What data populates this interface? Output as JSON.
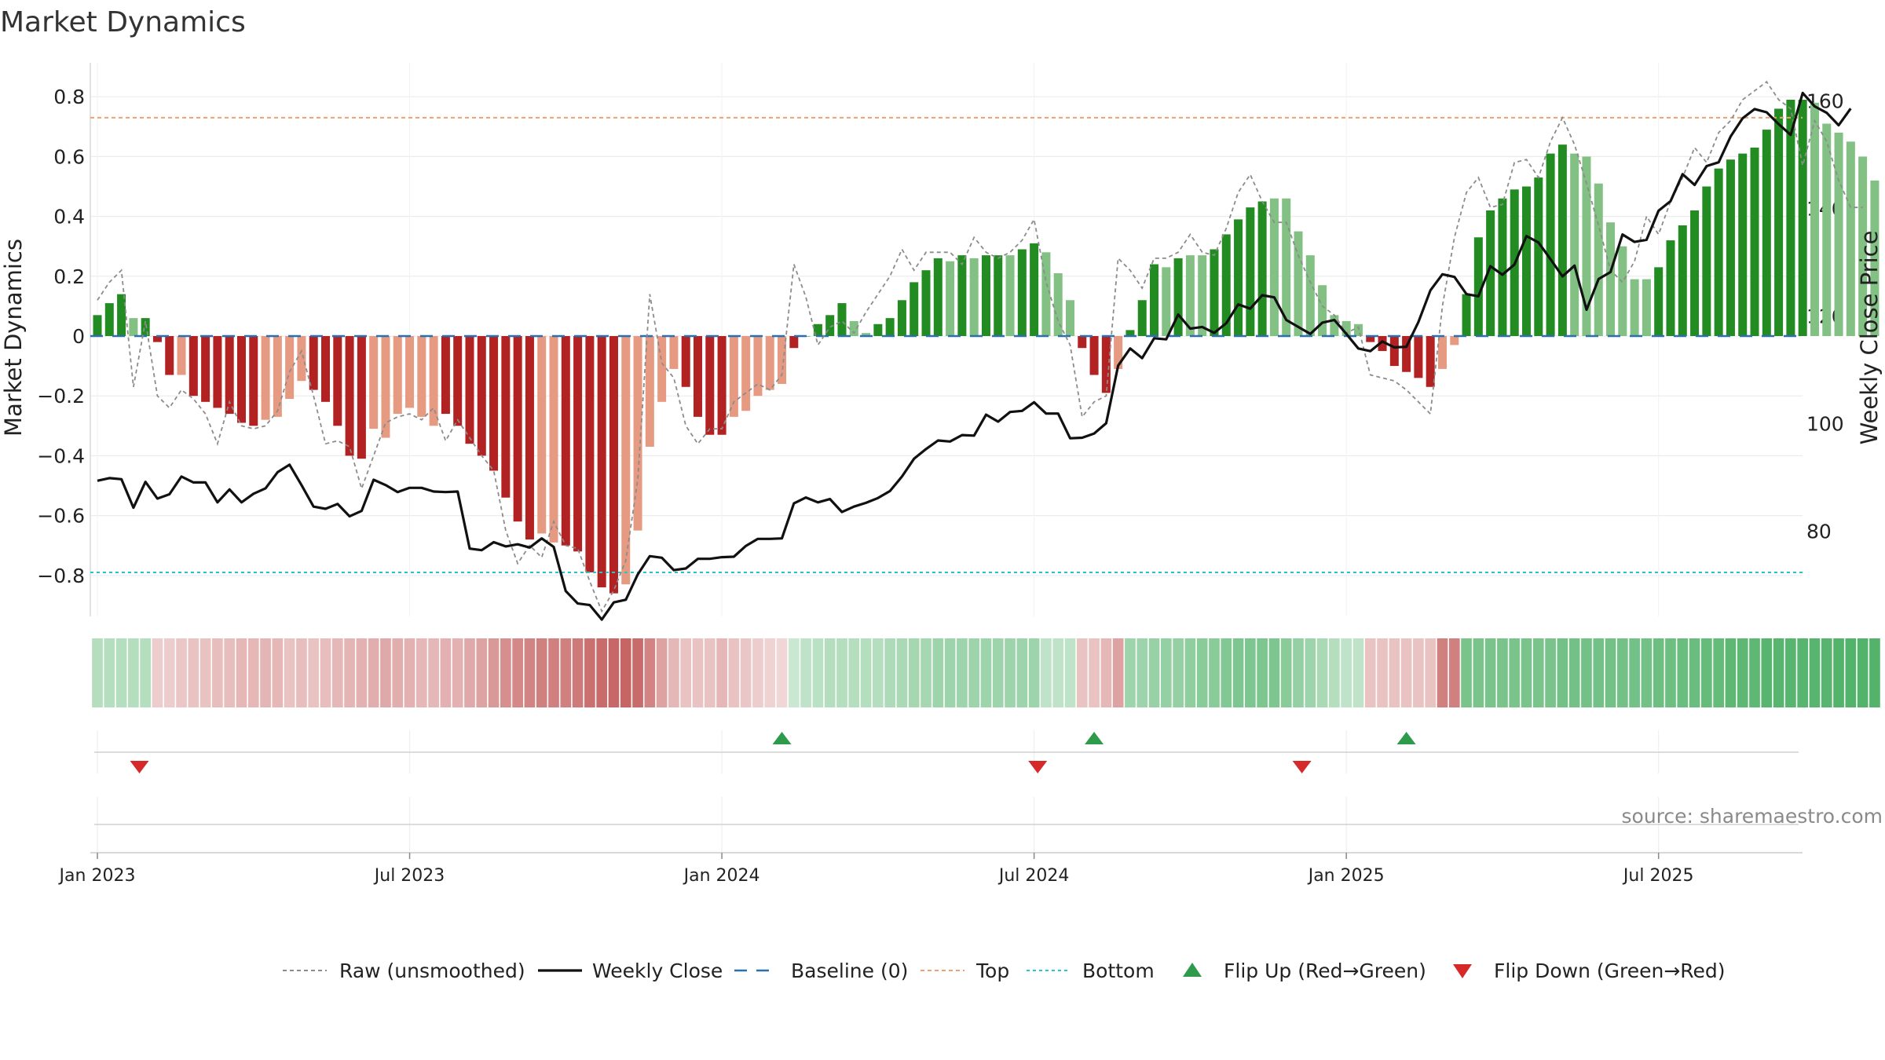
{
  "chart_data": {
    "type": "bar",
    "title": "Market Dynamics",
    "ylabel_left": "Market Dynamics",
    "ylabel_right": "Weekly Close Price",
    "source": "source: sharemaestro.com",
    "ylim_left": [
      -0.92,
      0.93
    ],
    "yticks_left": [
      -0.8,
      -0.6,
      -0.4,
      -0.2,
      0,
      0.2,
      0.4,
      0.6,
      0.8
    ],
    "yticklabels_left": [
      "−0.8",
      "−0.6",
      "−0.4",
      "−0.2",
      "0",
      "0.2",
      "0.4",
      "0.6",
      "0.8"
    ],
    "ylim_right": [
      64.2,
      167.1
    ],
    "yticks_right": [
      80,
      100,
      120,
      140,
      160
    ],
    "yticklabels_right": [
      "80",
      "100",
      "120",
      "140",
      "160"
    ],
    "xticks": [
      "Jan 2023",
      "Jul 2023",
      "Jan 2024",
      "Jul 2024",
      "Jan 2025",
      "Jul 2025"
    ],
    "xtick_weeks": [
      0,
      26,
      52,
      78,
      104,
      130
    ],
    "week_start": "Jan 2023",
    "top_threshold": 0.73,
    "bottom_threshold": -0.79,
    "baseline": 0,
    "smoothed": [
      0.07,
      0.11,
      0.14,
      0.06,
      0.06,
      -0.02,
      -0.13,
      -0.13,
      -0.2,
      -0.22,
      -0.24,
      -0.26,
      -0.29,
      -0.3,
      -0.28,
      -0.27,
      -0.21,
      -0.15,
      -0.18,
      -0.22,
      -0.3,
      -0.4,
      -0.41,
      -0.31,
      -0.34,
      -0.26,
      -0.24,
      -0.27,
      -0.3,
      -0.26,
      -0.3,
      -0.36,
      -0.4,
      -0.45,
      -0.54,
      -0.62,
      -0.68,
      -0.66,
      -0.69,
      -0.7,
      -0.72,
      -0.79,
      -0.84,
      -0.86,
      -0.83,
      -0.65,
      -0.37,
      -0.22,
      -0.11,
      -0.17,
      -0.27,
      -0.33,
      -0.33,
      -0.27,
      -0.25,
      -0.2,
      -0.18,
      -0.16,
      -0.04,
      0.0,
      0.04,
      0.07,
      0.11,
      0.05,
      0.01,
      0.04,
      0.06,
      0.12,
      0.18,
      0.22,
      0.26,
      0.25,
      0.27,
      0.26,
      0.27,
      0.27,
      0.27,
      0.29,
      0.31,
      0.28,
      0.21,
      0.12,
      -0.04,
      -0.13,
      -0.19,
      -0.11,
      0.02,
      0.12,
      0.24,
      0.23,
      0.26,
      0.27,
      0.27,
      0.29,
      0.34,
      0.39,
      0.43,
      0.45,
      0.46,
      0.46,
      0.35,
      0.27,
      0.17,
      0.07,
      0.05,
      0.04,
      -0.02,
      -0.05,
      -0.1,
      -0.12,
      -0.14,
      -0.17,
      -0.11,
      -0.03,
      0.14,
      0.33,
      0.42,
      0.46,
      0.49,
      0.5,
      0.53,
      0.61,
      0.64,
      0.61,
      0.6,
      0.51,
      0.38,
      0.3,
      0.19,
      0.19,
      0.23,
      0.32,
      0.37,
      0.42,
      0.5,
      0.56,
      0.59,
      0.61,
      0.63,
      0.69,
      0.76,
      0.79,
      0.79,
      0.78,
      0.71,
      0.68,
      0.65,
      0.6,
      0.52
    ],
    "bar_shade": [
      "d",
      "d",
      "d",
      "l",
      "d",
      "d",
      "d",
      "l",
      "d",
      "d",
      "d",
      "d",
      "d",
      "d",
      "l",
      "l",
      "l",
      "l",
      "d",
      "d",
      "d",
      "d",
      "d",
      "l",
      "l",
      "l",
      "l",
      "l",
      "l",
      "d",
      "d",
      "d",
      "d",
      "d",
      "d",
      "d",
      "d",
      "l",
      "l",
      "d",
      "d",
      "d",
      "d",
      "d",
      "l",
      "l",
      "l",
      "l",
      "l",
      "d",
      "d",
      "d",
      "d",
      "l",
      "l",
      "l",
      "l",
      "l",
      "d",
      "l",
      "d",
      "d",
      "d",
      "l",
      "l",
      "d",
      "d",
      "d",
      "d",
      "d",
      "d",
      "l",
      "d",
      "l",
      "d",
      "d",
      "l",
      "d",
      "d",
      "l",
      "l",
      "l",
      "d",
      "d",
      "d",
      "l",
      "d",
      "d",
      "d",
      "l",
      "d",
      "l",
      "l",
      "d",
      "d",
      "d",
      "d",
      "d",
      "l",
      "l",
      "l",
      "l",
      "l",
      "l",
      "l",
      "l",
      "d",
      "d",
      "d",
      "d",
      "d",
      "d",
      "l",
      "l",
      "d",
      "d",
      "d",
      "d",
      "d",
      "d",
      "d",
      "d",
      "d",
      "l",
      "l",
      "l",
      "l",
      "l",
      "l",
      "l",
      "d",
      "d",
      "d",
      "d",
      "d",
      "d",
      "d",
      "d",
      "d",
      "d",
      "d",
      "d",
      "d",
      "l",
      "l",
      "l",
      "l",
      "l",
      "l",
      "l",
      "l"
    ],
    "raw": [
      0.12,
      0.18,
      0.22,
      -0.17,
      0.05,
      -0.2,
      -0.24,
      -0.18,
      -0.21,
      -0.26,
      -0.36,
      -0.22,
      -0.3,
      -0.31,
      -0.3,
      -0.25,
      -0.12,
      -0.05,
      -0.2,
      -0.36,
      -0.35,
      -0.37,
      -0.51,
      -0.4,
      -0.29,
      -0.27,
      -0.26,
      -0.28,
      -0.24,
      -0.35,
      -0.28,
      -0.34,
      -0.4,
      -0.45,
      -0.65,
      -0.76,
      -0.7,
      -0.74,
      -0.62,
      -0.7,
      -0.71,
      -0.82,
      -0.92,
      -0.85,
      -0.75,
      -0.48,
      0.14,
      -0.09,
      -0.14,
      -0.3,
      -0.36,
      -0.31,
      -0.31,
      -0.22,
      -0.19,
      -0.16,
      -0.18,
      -0.13,
      0.24,
      0.13,
      -0.03,
      0.03,
      0.05,
      0.01,
      0.08,
      0.14,
      0.2,
      0.29,
      0.22,
      0.28,
      0.28,
      0.28,
      0.24,
      0.33,
      0.28,
      0.26,
      0.28,
      0.32,
      0.39,
      0.18,
      0.05,
      -0.03,
      -0.27,
      -0.22,
      -0.2,
      0.26,
      0.22,
      0.16,
      0.26,
      0.26,
      0.28,
      0.34,
      0.28,
      0.27,
      0.36,
      0.48,
      0.54,
      0.45,
      0.38,
      0.38,
      0.27,
      0.18,
      0.1,
      0.07,
      0.01,
      0.03,
      -0.13,
      -0.14,
      -0.15,
      -0.18,
      -0.22,
      -0.26,
      0.1,
      0.33,
      0.48,
      0.53,
      0.43,
      0.44,
      0.58,
      0.59,
      0.53,
      0.65,
      0.73,
      0.64,
      0.51,
      0.37,
      0.22,
      0.18,
      0.25,
      0.4,
      0.34,
      0.45,
      0.53,
      0.63,
      0.58,
      0.68,
      0.72,
      0.79,
      0.82,
      0.85,
      0.79,
      0.76,
      0.57,
      0.72,
      0.65,
      0.52,
      0.43,
      0.43
    ],
    "weekly_close": [
      89.4,
      89.9,
      89.7,
      84.4,
      89.2,
      86.1,
      86.9,
      90.2,
      89.1,
      89.1,
      85.4,
      87.8,
      85.4,
      87.0,
      88.0,
      91.0,
      92.4,
      88.6,
      84.6,
      84.2,
      85.1,
      82.8,
      83.8,
      89.6,
      88.6,
      87.3,
      88.1,
      88.1,
      87.4,
      87.3,
      87.4,
      76.8,
      76.5,
      78.0,
      77.2,
      77.6,
      77.0,
      78.7,
      77.1,
      68.9,
      66.6,
      66.3,
      63.6,
      66.8,
      67.3,
      72.0,
      75.4,
      75.1,
      72.8,
      73.1,
      74.9,
      74.9,
      75.2,
      75.3,
      77.3,
      78.6,
      78.6,
      78.7,
      85.2,
      86.3,
      85.4,
      86.0,
      83.6,
      84.6,
      85.3,
      86.2,
      87.5,
      90.2,
      93.5,
      95.3,
      96.9,
      96.7,
      97.9,
      97.8,
      101.7,
      100.4,
      102.2,
      102.4,
      104.0,
      101.9,
      101.9,
      97.3,
      97.4,
      98.2,
      100.1,
      110.8,
      114.0,
      112.2,
      115.9,
      115.7,
      120.3,
      117.7,
      118.0,
      116.9,
      118.7,
      122.2,
      121.4,
      123.9,
      123.5,
      119.3,
      118.0,
      116.7,
      118.8,
      119.3,
      116.7,
      114.0,
      113.5,
      115.3,
      114.2,
      114.3,
      118.9,
      124.8,
      127.8,
      127.3,
      124.1,
      123.7,
      129.3,
      127.7,
      129.6,
      134.9,
      133.7,
      130.6,
      127.4,
      129.4,
      121.2,
      126.9,
      128.2,
      135.2,
      133.8,
      134.2,
      139.6,
      141.4,
      146.4,
      144.4,
      147.9,
      148.6,
      153.4,
      156.8,
      158.5,
      157.9,
      155.7,
      153.7,
      161.5,
      159.0,
      157.8,
      155.5,
      158.6
    ],
    "heat_strength": [
      0.35,
      0.35,
      0.35,
      0.35,
      0.35,
      0.25,
      0.25,
      0.28,
      0.3,
      0.3,
      0.32,
      0.32,
      0.35,
      0.35,
      0.36,
      0.35,
      0.3,
      0.32,
      0.3,
      0.32,
      0.35,
      0.36,
      0.38,
      0.4,
      0.42,
      0.4,
      0.38,
      0.35,
      0.35,
      0.38,
      0.38,
      0.42,
      0.45,
      0.5,
      0.55,
      0.58,
      0.6,
      0.62,
      0.62,
      0.62,
      0.65,
      0.7,
      0.72,
      0.74,
      0.75,
      0.72,
      0.6,
      0.45,
      0.35,
      0.3,
      0.3,
      0.3,
      0.35,
      0.3,
      0.28,
      0.25,
      0.22,
      0.2,
      0.25,
      0.3,
      0.32,
      0.35,
      0.35,
      0.35,
      0.35,
      0.35,
      0.38,
      0.4,
      0.42,
      0.42,
      0.45,
      0.45,
      0.45,
      0.45,
      0.45,
      0.45,
      0.45,
      0.45,
      0.45,
      0.3,
      0.3,
      0.3,
      0.3,
      0.3,
      0.35,
      0.45,
      0.45,
      0.45,
      0.48,
      0.5,
      0.5,
      0.52,
      0.55,
      0.55,
      0.58,
      0.6,
      0.6,
      0.6,
      0.6,
      0.55,
      0.5,
      0.45,
      0.4,
      0.35,
      0.3,
      0.3,
      0.3,
      0.3,
      0.3,
      0.3,
      0.3,
      0.3,
      0.62,
      0.62,
      0.62,
      0.62,
      0.62,
      0.62,
      0.62,
      0.62,
      0.62,
      0.62,
      0.65,
      0.65,
      0.65,
      0.65,
      0.65,
      0.65,
      0.65,
      0.65,
      0.68,
      0.68,
      0.7,
      0.7,
      0.72,
      0.72,
      0.75,
      0.75,
      0.75,
      0.78,
      0.78,
      0.78,
      0.78,
      0.78,
      0.78,
      0.8,
      0.8,
      0.8,
      0.8
    ],
    "heat_sign": [
      "g",
      "g",
      "g",
      "g",
      "g",
      "r",
      "r",
      "r",
      "r",
      "r",
      "r",
      "r",
      "r",
      "r",
      "r",
      "r",
      "r",
      "r",
      "r",
      "r",
      "r",
      "r",
      "r",
      "r",
      "r",
      "r",
      "r",
      "r",
      "r",
      "r",
      "r",
      "r",
      "r",
      "r",
      "r",
      "r",
      "r",
      "r",
      "r",
      "r",
      "r",
      "r",
      "r",
      "r",
      "r",
      "r",
      "r",
      "r",
      "r",
      "r",
      "r",
      "r",
      "r",
      "r",
      "r",
      "r",
      "r",
      "r",
      "g",
      "g",
      "g",
      "g",
      "g",
      "g",
      "g",
      "g",
      "g",
      "g",
      "g",
      "g",
      "g",
      "g",
      "g",
      "g",
      "g",
      "g",
      "g",
      "g",
      "g",
      "g",
      "g",
      "g",
      "r",
      "r",
      "r",
      "r",
      "g",
      "g",
      "g",
      "g",
      "g",
      "g",
      "g",
      "g",
      "g",
      "g",
      "g",
      "g",
      "g",
      "g",
      "g",
      "g",
      "g",
      "g",
      "g",
      "g",
      "r",
      "r",
      "r",
      "r",
      "r",
      "r",
      "r",
      "r",
      "g",
      "g",
      "g",
      "g",
      "g",
      "g",
      "g",
      "g",
      "g",
      "g",
      "g",
      "g",
      "g",
      "g",
      "g",
      "g",
      "g",
      "g",
      "g",
      "g",
      "g",
      "g",
      "g",
      "g",
      "g",
      "g",
      "g",
      "g",
      "g",
      "g",
      "g",
      "g",
      "g",
      "g",
      "g",
      "g",
      "g"
    ],
    "flip_up_weeks": [
      57,
      83,
      109
    ],
    "flip_down_weeks": [
      3.5,
      78.3,
      100.3
    ],
    "legend": [
      {
        "label": "Raw (unsmoothed)",
        "style": "dashed-gray"
      },
      {
        "label": "Weekly Close",
        "style": "solid-black"
      },
      {
        "label": "Baseline (0)",
        "style": "dashed-blue"
      },
      {
        "label": "Top",
        "style": "dotted-orange"
      },
      {
        "label": "Bottom",
        "style": "dotted-cyan"
      },
      {
        "label": "Flip Up (Red→Green)",
        "style": "up-triangle"
      },
      {
        "label": "Flip Down (Green→Red)",
        "style": "down-triangle"
      }
    ],
    "legend_placement": "bottom",
    "grid": true,
    "colors": {
      "green_dark": "#228b22",
      "green_light": "#82c083",
      "red_dark": "#b22222",
      "red_light": "#e69a82",
      "raw_line": "#8c8c8c",
      "close_line": "#111111",
      "baseline": "#2a6fb0",
      "top": "#f0a070",
      "bottom": "#1fc7cf",
      "flip_up": "#2e9a4b",
      "flip_down": "#d62a2a"
    }
  }
}
